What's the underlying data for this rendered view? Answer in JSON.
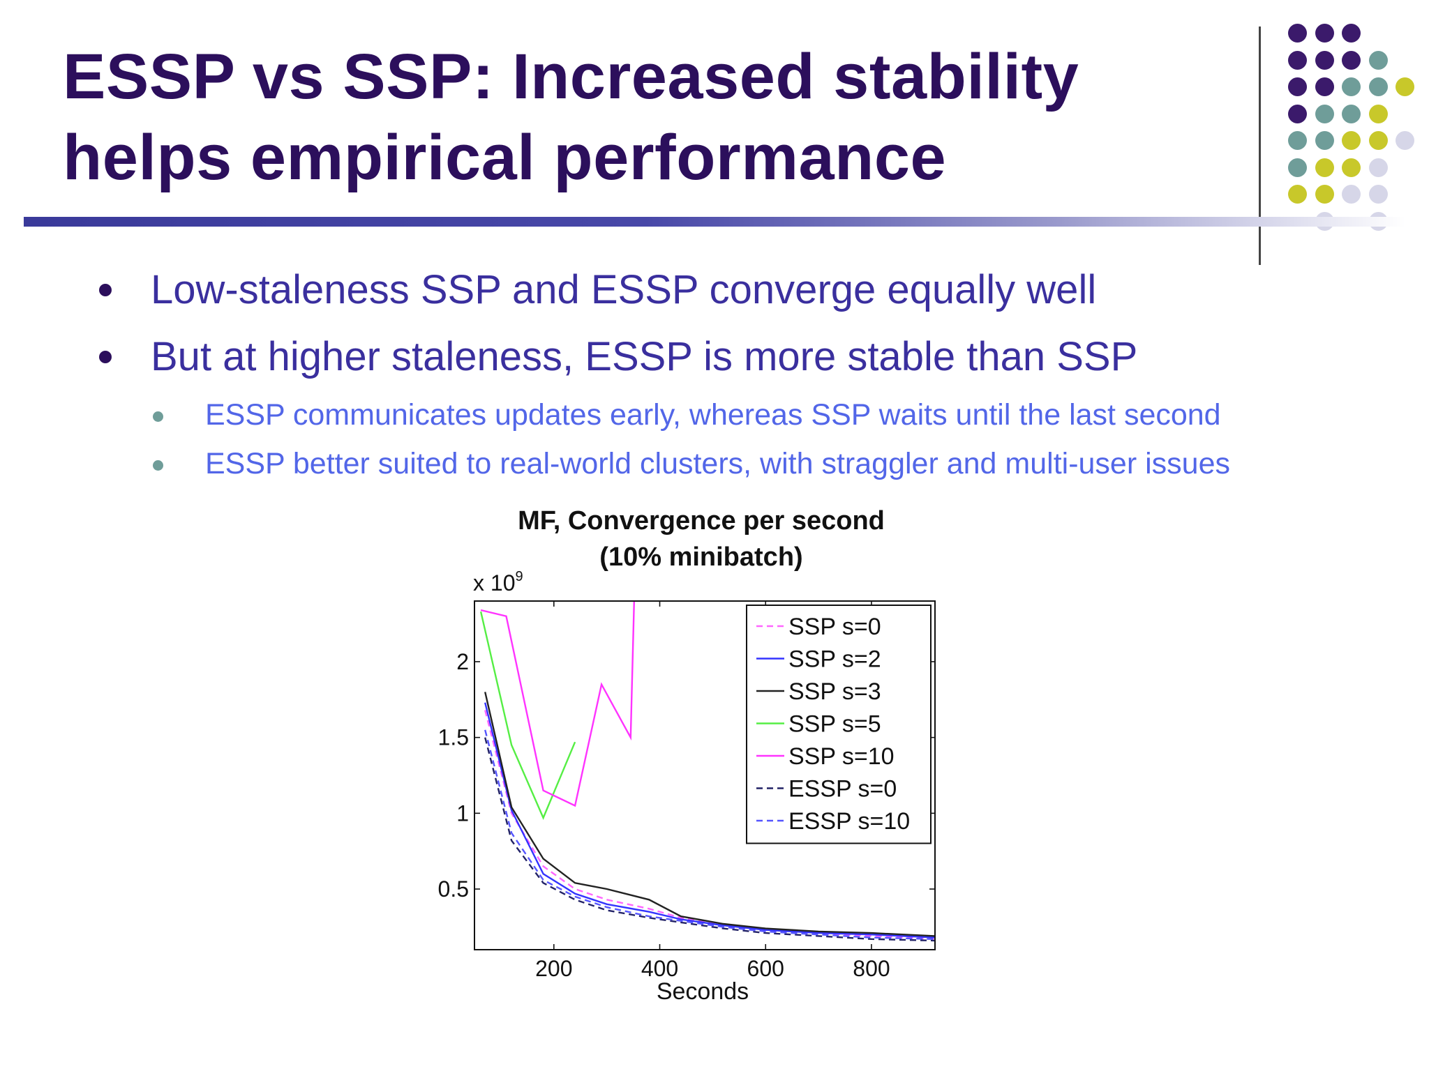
{
  "slide": {
    "title_line1": "ESSP vs SSP: Increased stability",
    "title_line2": "helps empirical performance",
    "bullets": [
      "Low-staleness SSP and ESSP converge equally well",
      "But at higher staleness, ESSP is more stable than SSP"
    ],
    "sub_bullets": [
      "ESSP communicates updates early, whereas SSP waits until the last second",
      "ESSP better suited to real-world clusters, with straggler and multi-user issues"
    ],
    "colors": {
      "title": "#2c0f5c",
      "bullet_text": "#3a2f9e",
      "sub_bullet_text": "#5266e8",
      "sub_bullet_marker": "#6f9d99",
      "dot_purple": "#3b1a6b",
      "dot_teal": "#6f9d99",
      "dot_yellow": "#c8c82a",
      "dot_lavender": "#d6d6e8"
    }
  },
  "chart_data": {
    "type": "line",
    "title": "MF, Convergence per second",
    "subtitle": "(10% minibatch)",
    "xlabel": "Seconds",
    "ylabel": "",
    "y_multiplier_label": "x 10",
    "y_multiplier_exponent": "9",
    "xlim": [
      50,
      920
    ],
    "ylim": [
      0.1,
      2.4
    ],
    "xticks": [
      200,
      400,
      600,
      800
    ],
    "yticks": [
      0.5,
      1,
      1.5,
      2
    ],
    "ytick_labels": [
      "0.5",
      "1",
      "1.5",
      "2"
    ],
    "grid": false,
    "legend_position": "top-right",
    "series": [
      {
        "name": "SSP s=0",
        "color": "#ff66ff",
        "dash": "dashed",
        "x": [
          70,
          120,
          180,
          240,
          300,
          380,
          440,
          520,
          600,
          700,
          800,
          920
        ],
        "y": [
          1.68,
          1.0,
          0.65,
          0.5,
          0.43,
          0.37,
          0.31,
          0.26,
          0.23,
          0.21,
          0.19,
          0.17
        ]
      },
      {
        "name": "SSP s=2",
        "color": "#3333ff",
        "dash": "solid",
        "x": [
          70,
          120,
          180,
          240,
          300,
          380,
          440,
          520,
          600,
          700,
          800,
          920
        ],
        "y": [
          1.73,
          1.02,
          0.6,
          0.47,
          0.4,
          0.35,
          0.3,
          0.26,
          0.23,
          0.21,
          0.2,
          0.18
        ]
      },
      {
        "name": "SSP s=3",
        "color": "#222222",
        "dash": "solid",
        "x": [
          70,
          120,
          180,
          240,
          300,
          380,
          440,
          520,
          600,
          700,
          800,
          920
        ],
        "y": [
          1.8,
          1.04,
          0.7,
          0.54,
          0.5,
          0.43,
          0.32,
          0.27,
          0.24,
          0.22,
          0.21,
          0.19
        ]
      },
      {
        "name": "SSP s=5",
        "color": "#55ee44",
        "dash": "solid",
        "x": [
          62,
          120,
          180,
          240
        ],
        "y": [
          2.33,
          1.45,
          0.97,
          1.47
        ]
      },
      {
        "name": "SSP s=10",
        "color": "#ff33ff",
        "dash": "solid",
        "x": [
          62,
          110,
          180,
          240,
          290,
          345,
          352
        ],
        "y": [
          2.34,
          2.3,
          1.15,
          1.05,
          1.85,
          1.5,
          2.45
        ]
      },
      {
        "name": "ESSP s=0",
        "color": "#222266",
        "dash": "dashed",
        "x": [
          70,
          120,
          180,
          240,
          300,
          380,
          440,
          520,
          600,
          700,
          800,
          920
        ],
        "y": [
          1.5,
          0.82,
          0.54,
          0.43,
          0.36,
          0.31,
          0.28,
          0.24,
          0.21,
          0.19,
          0.17,
          0.16
        ]
      },
      {
        "name": "ESSP s=10",
        "color": "#5555ff",
        "dash": "dashed",
        "x": [
          70,
          120,
          180,
          240,
          300,
          380,
          440,
          520,
          600,
          700,
          800,
          920
        ],
        "y": [
          1.55,
          0.87,
          0.56,
          0.45,
          0.38,
          0.32,
          0.29,
          0.25,
          0.22,
          0.2,
          0.18,
          0.17
        ]
      }
    ]
  }
}
